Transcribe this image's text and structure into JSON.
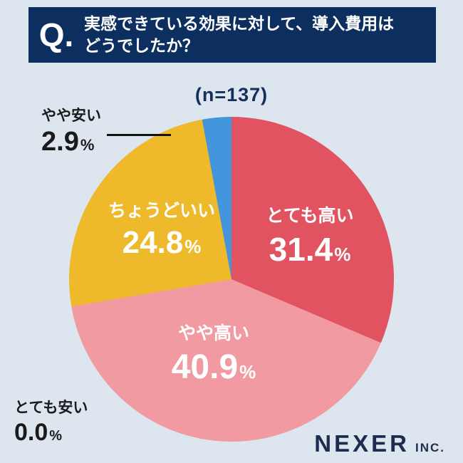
{
  "header": {
    "q_label": "Q.",
    "title_line1": "実感できている効果に対して、導入費用は",
    "title_line2": "どうでしたか？"
  },
  "chart": {
    "sample_label": "(n=137)"
  },
  "chart_data": {
    "type": "pie",
    "title": "実感できている効果に対して、導入費用はどうでしたか？",
    "sample_size_label": "(n=137)",
    "n": 137,
    "labels": [
      "とても高い",
      "やや高い",
      "ちょうどいい",
      "やや安い",
      "とても安い"
    ],
    "values": [
      31.4,
      40.9,
      24.8,
      2.9,
      0.0
    ],
    "value_display": [
      "31.4",
      "40.9",
      "24.8",
      "2.9",
      "0.0"
    ],
    "percent_sign": "%",
    "colors": [
      "#e25361",
      "#f19aa2",
      "#eeba2b",
      "#4396db",
      "#9aa7b8"
    ],
    "start_angle_deg": 0,
    "direction": "clockwise",
    "legend_position": "none",
    "label_placement": "inside for large slices, outside with leader line for やや安い and とても安い"
  },
  "footer": {
    "brand": "NEXER",
    "suffix": "INC."
  },
  "ui_colors": {
    "background": "#dde5ee",
    "header_navy": "#0d2f60",
    "dark_text": "#1a1a1a",
    "brand_navy": "#1d2c4f"
  }
}
